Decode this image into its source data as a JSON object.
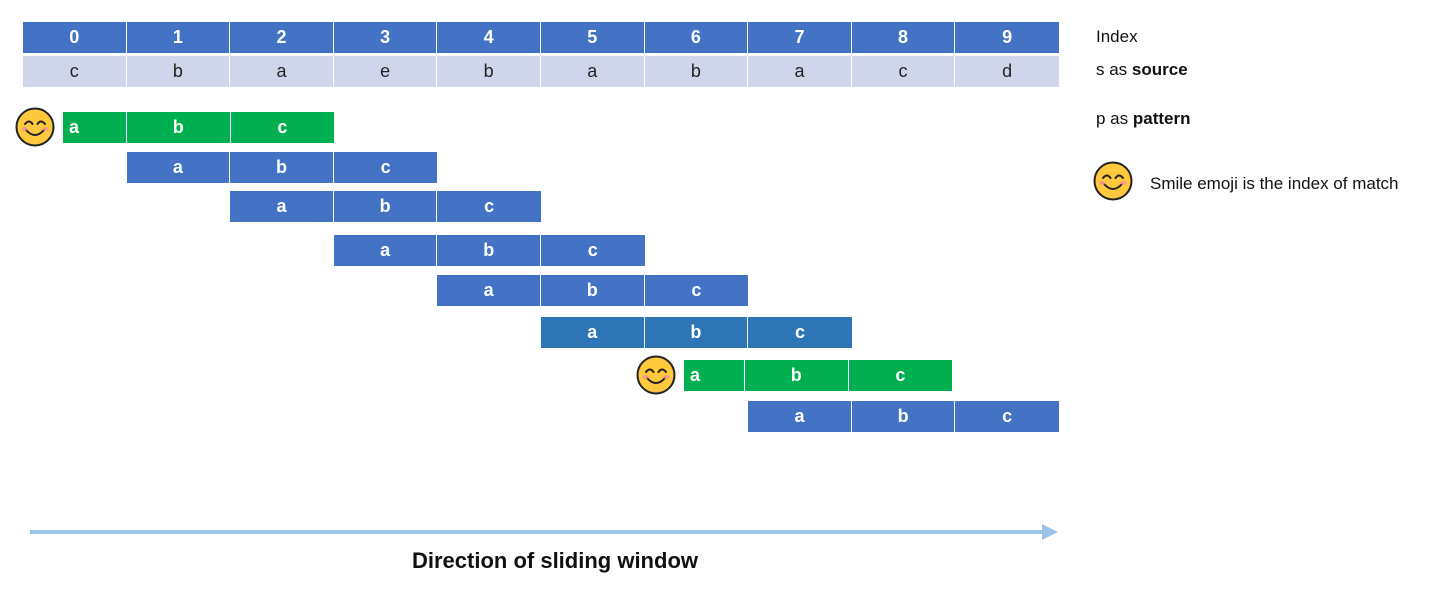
{
  "indices": [
    "0",
    "1",
    "2",
    "3",
    "4",
    "5",
    "6",
    "7",
    "8",
    "9"
  ],
  "source": [
    "c",
    "b",
    "a",
    "e",
    "b",
    "a",
    "b",
    "a",
    "c",
    "d"
  ],
  "pattern": [
    "a",
    "b",
    "c"
  ],
  "legend": {
    "index_label": "Index",
    "source_prefix": "s as ",
    "source_bold": "source",
    "pattern_prefix": "p as ",
    "pattern_bold": "pattern",
    "emoji_label": "Smile emoji is the index of match"
  },
  "windows": [
    {
      "start": 0,
      "state": "match"
    },
    {
      "start": 1,
      "state": "no-match"
    },
    {
      "start": 2,
      "state": "no-match"
    },
    {
      "start": 3,
      "state": "no-match"
    },
    {
      "start": 4,
      "state": "no-match"
    },
    {
      "start": 5,
      "state": "no-match"
    },
    {
      "start": 6,
      "state": "match"
    },
    {
      "start": 7,
      "state": "no-match"
    }
  ],
  "colors": {
    "index": "#4472C4",
    "source": "#CFD5EA",
    "window": "#4472C4",
    "match": "#00B050",
    "arrow": "#9DC3E6"
  },
  "caption": "Direction of sliding window"
}
